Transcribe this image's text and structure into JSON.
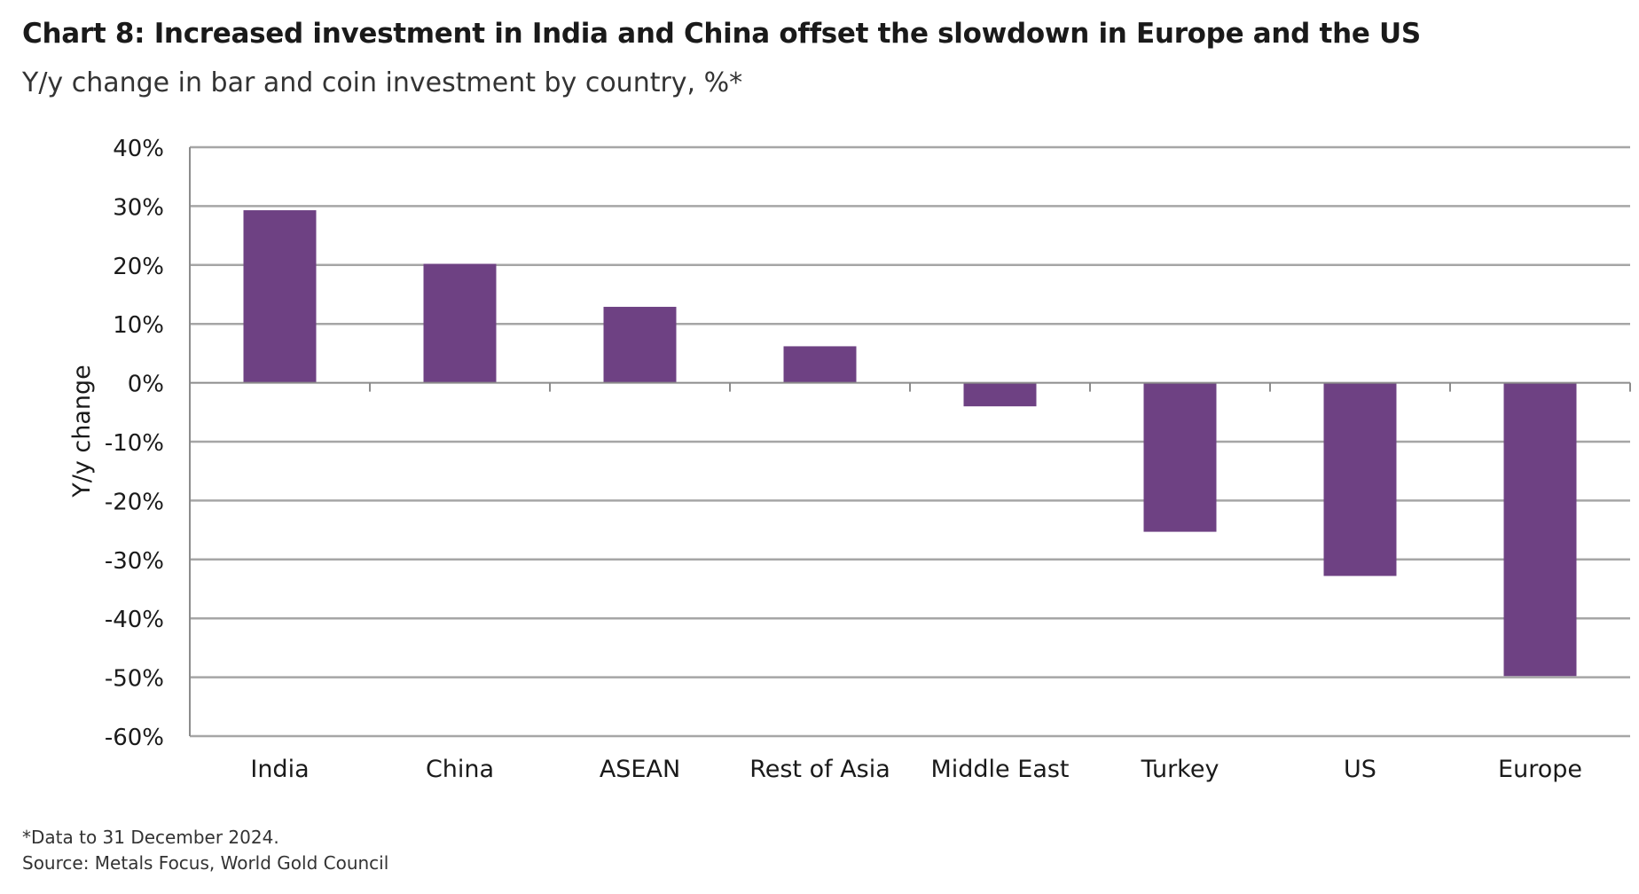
{
  "header": {
    "title": "Chart 8: Increased investment in India and China offset the slowdown in Europe and the US",
    "subtitle": "Y/y change in bar and coin investment by country, %*"
  },
  "footer": {
    "note": "*Data to 31 December 2024.",
    "source": "Source: Metals Focus, World Gold Council"
  },
  "colors": {
    "bar": "#6e4183",
    "gridline": "#a6a6a6",
    "axis": "#8c8c8c"
  },
  "chart_data": {
    "type": "bar",
    "title": "Chart 8: Increased investment in India and China offset the slowdown in Europe and the US",
    "subtitle": "Y/y change in bar and coin investment by country, %*",
    "xlabel": "",
    "ylabel": "Y/y change",
    "categories": [
      "India",
      "China",
      "ASEAN",
      "Rest of Asia",
      "Middle East",
      "Turkey",
      "US",
      "Europe"
    ],
    "values": [
      29.3,
      20.2,
      12.9,
      6.2,
      -4.0,
      -25.3,
      -32.8,
      -49.8
    ],
    "ylim": [
      -60,
      40
    ],
    "yticks": [
      40,
      30,
      20,
      10,
      0,
      -10,
      -20,
      -30,
      -40,
      -50,
      -60
    ],
    "ytick_labels": [
      "40%",
      "30%",
      "20%",
      "10%",
      "0%",
      "-10%",
      "-20%",
      "-30%",
      "-40%",
      "-50%",
      "-60%"
    ],
    "grid": true,
    "legend": "none"
  }
}
